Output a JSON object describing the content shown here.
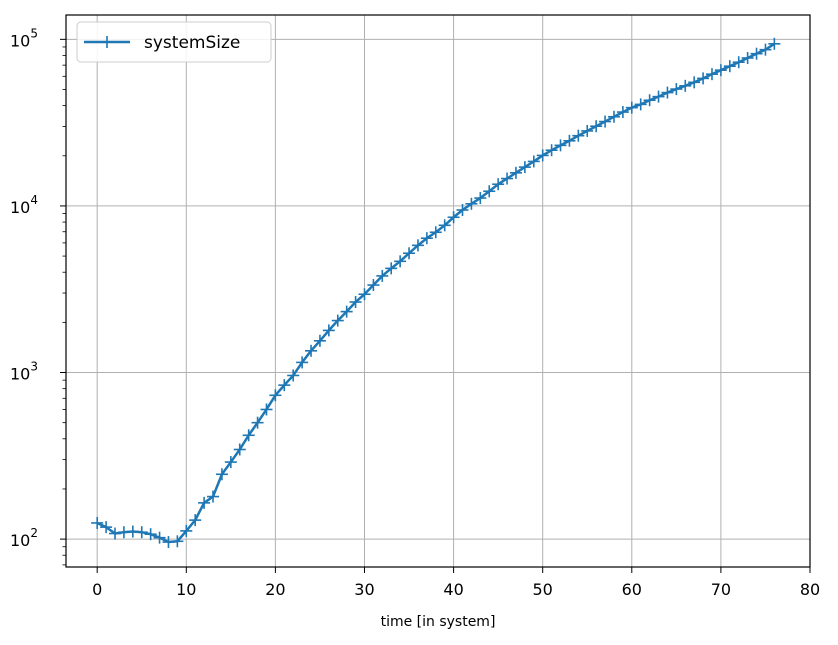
{
  "chart_data": {
    "type": "line",
    "xlabel": "time [in system]",
    "ylabel": "",
    "title": "",
    "xlim": [
      -3.5,
      80
    ],
    "ylim": [
      68,
      140000
    ],
    "yscale": "log",
    "grid": true,
    "legend": {
      "placement": "top-left",
      "entries": [
        "systemSize"
      ]
    },
    "marker": "plus",
    "color": "#1f77b4",
    "x_ticks": [
      0,
      10,
      20,
      30,
      40,
      50,
      60,
      70,
      80
    ],
    "y_ticks": [
      {
        "value": 100,
        "base": "10",
        "exp": "2"
      },
      {
        "value": 1000,
        "base": "10",
        "exp": "3"
      },
      {
        "value": 10000,
        "base": "10",
        "exp": "4"
      },
      {
        "value": 100000,
        "base": "10",
        "exp": "5"
      }
    ],
    "series": [
      {
        "name": "systemSize",
        "x": [
          0,
          1,
          2,
          3,
          4,
          5,
          6,
          7,
          8,
          9,
          10,
          11,
          12,
          13,
          14,
          15,
          16,
          17,
          18,
          19,
          20,
          21,
          22,
          23,
          24,
          25,
          26,
          27,
          28,
          29,
          30,
          31,
          32,
          33,
          34,
          35,
          36,
          37,
          38,
          39,
          40,
          41,
          42,
          43,
          44,
          45,
          46,
          47,
          48,
          49,
          50,
          51,
          52,
          53,
          54,
          55,
          56,
          57,
          58,
          59,
          60,
          61,
          62,
          63,
          64,
          65,
          66,
          67,
          68,
          69,
          70,
          71,
          72,
          73,
          74,
          75,
          76
        ],
        "y": [
          125,
          118,
          108,
          110,
          111,
          110,
          107,
          102,
          96,
          97,
          112,
          130,
          165,
          180,
          245,
          290,
          345,
          420,
          500,
          600,
          730,
          840,
          960,
          1150,
          1350,
          1550,
          1790,
          2050,
          2320,
          2650,
          2950,
          3350,
          3800,
          4220,
          4650,
          5200,
          5800,
          6400,
          6950,
          7650,
          8550,
          9450,
          10300,
          11150,
          12250,
          13500,
          14600,
          15800,
          17100,
          18500,
          20100,
          21600,
          23100,
          24600,
          26400,
          28200,
          30100,
          32100,
          34300,
          36600,
          38900,
          40700,
          43100,
          45300,
          47900,
          50300,
          52600,
          55200,
          58300,
          61800,
          65300,
          69000,
          72900,
          77300,
          82000,
          86700,
          94000
        ]
      }
    ]
  }
}
